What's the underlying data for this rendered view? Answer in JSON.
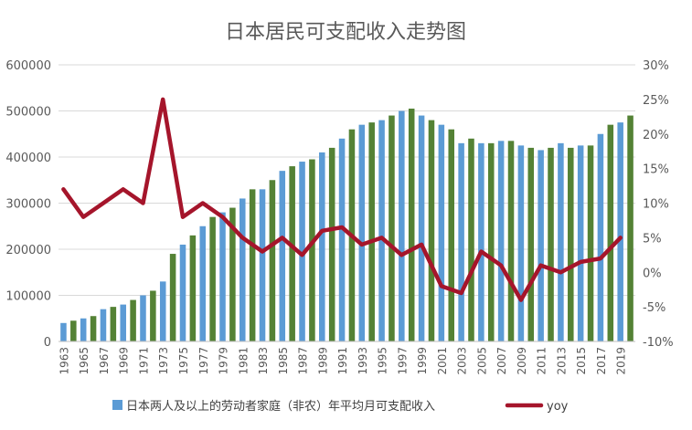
{
  "chart_data": {
    "type": "bar",
    "title": "日本居民可支配收入走势图",
    "xlabel": "",
    "ylabel": "",
    "ylim": [
      0,
      600000
    ],
    "y2lim": [
      -10,
      30
    ],
    "y_ticks": [
      "0",
      "100000",
      "200000",
      "300000",
      "400000",
      "500000",
      "600000"
    ],
    "y2_ticks": [
      "-10%",
      "-5%",
      "0%",
      "5%",
      "10%",
      "15%",
      "20%",
      "25%",
      "30%"
    ],
    "grid": true,
    "legend_position": "bottom",
    "x_tick_labels": [
      "1963",
      "1965",
      "1967",
      "1969",
      "1971",
      "1973",
      "1975",
      "1977",
      "1979",
      "1981",
      "1983",
      "1985",
      "1987",
      "1989",
      "1991",
      "1993",
      "1995",
      "1997",
      "1999",
      "2001",
      "2003",
      "2005",
      "2007",
      "2009",
      "2011",
      "2013",
      "2015",
      "2017",
      "2019"
    ],
    "series": [
      {
        "name": "日本两人及以上的劳动者家庭（非农）年平均月可支配收入",
        "kind": "bar",
        "colors": [
          "#5b9bd5",
          "#548235"
        ],
        "categories": [
          "1963",
          "1964",
          "1965",
          "1966",
          "1967",
          "1968",
          "1969",
          "1970",
          "1971",
          "1972",
          "1973",
          "1974",
          "1975",
          "1976",
          "1977",
          "1978",
          "1979",
          "1980",
          "1981",
          "1982",
          "1983",
          "1984",
          "1985",
          "1986",
          "1987",
          "1988",
          "1989",
          "1990",
          "1991",
          "1992",
          "1993",
          "1994",
          "1995",
          "1996",
          "1997",
          "1998",
          "1999",
          "2000",
          "2001",
          "2002",
          "2003",
          "2004",
          "2005",
          "2006",
          "2007",
          "2008",
          "2009",
          "2010",
          "2011",
          "2012",
          "2013",
          "2014",
          "2015",
          "2016",
          "2017",
          "2018",
          "2019",
          "2020"
        ],
        "values": [
          40000,
          45000,
          50000,
          55000,
          70000,
          75000,
          80000,
          90000,
          100000,
          110000,
          130000,
          190000,
          210000,
          230000,
          250000,
          270000,
          280000,
          290000,
          310000,
          330000,
          330000,
          350000,
          370000,
          380000,
          390000,
          395000,
          410000,
          420000,
          440000,
          460000,
          470000,
          475000,
          480000,
          490000,
          500000,
          505000,
          490000,
          480000,
          470000,
          460000,
          430000,
          440000,
          430000,
          430000,
          435000,
          435000,
          425000,
          420000,
          415000,
          420000,
          430000,
          420000,
          425000,
          425000,
          450000,
          470000,
          475000,
          490000
        ]
      },
      {
        "name": "yoy",
        "kind": "line",
        "axis": "right",
        "color": "#a5152b",
        "x": [
          "1963",
          "1965",
          "1967",
          "1969",
          "1971",
          "1973",
          "1975",
          "1977",
          "1979",
          "1981",
          "1983",
          "1985",
          "1987",
          "1989",
          "1991",
          "1993",
          "1995",
          "1997",
          "1999",
          "2001",
          "2003",
          "2005",
          "2007",
          "2009",
          "2011",
          "2013",
          "2015",
          "2017",
          "2019"
        ],
        "values": [
          12,
          8,
          10,
          12,
          10,
          25,
          8,
          10,
          8,
          5,
          3,
          5,
          2.5,
          6,
          6.5,
          4,
          5,
          2.5,
          4,
          -2,
          -3,
          3,
          1,
          -4,
          1,
          0,
          1.5,
          2,
          5
        ]
      }
    ]
  }
}
